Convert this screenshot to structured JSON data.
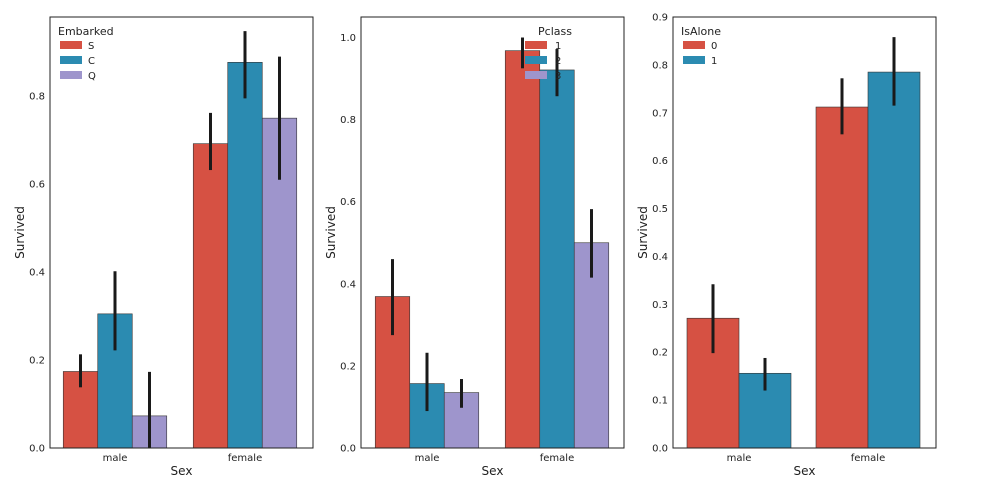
{
  "colors": {
    "red": "#d65143",
    "blue": "#2b8bb1",
    "purple": "#9e95cc",
    "frame": "#222222",
    "err": "#1a1a1a"
  },
  "chart_data": [
    {
      "type": "bar",
      "categories": [
        "male",
        "female"
      ],
      "xlabel": "Sex",
      "ylabel": "Survived",
      "ylim": [
        0,
        0.98
      ],
      "yticks": [
        "0.0",
        "0.2",
        "0.4",
        "0.6",
        "0.8"
      ],
      "yticks_values": [
        0,
        0.2,
        0.4,
        0.6,
        0.8
      ],
      "legend": {
        "title": "Embarked",
        "placement": "top-left"
      },
      "series": [
        {
          "name": "S",
          "color": "#d65143",
          "values": [
            0.174,
            0.692
          ],
          "ci": [
            [
              0.138,
              0.213
            ],
            [
              0.632,
              0.762
            ]
          ]
        },
        {
          "name": "C",
          "color": "#2b8bb1",
          "values": [
            0.305,
            0.877
          ],
          "ci": [
            [
              0.222,
              0.402
            ],
            [
              0.795,
              0.948
            ]
          ]
        },
        {
          "name": "Q",
          "color": "#9e95cc",
          "values": [
            0.073,
            0.75
          ],
          "ci": [
            [
              0.0,
              0.173
            ],
            [
              0.61,
              0.89
            ]
          ]
        }
      ]
    },
    {
      "type": "bar",
      "categories": [
        "male",
        "female"
      ],
      "xlabel": "Sex",
      "ylabel": "Survived",
      "ylim": [
        0,
        1.05
      ],
      "yticks": [
        "0.0",
        "0.2",
        "0.4",
        "0.6",
        "0.8",
        "1.0"
      ],
      "yticks_values": [
        0,
        0.2,
        0.4,
        0.6,
        0.8,
        1.0
      ],
      "legend": {
        "title": "Pclass",
        "placement": "top-right"
      },
      "series": [
        {
          "name": "1",
          "color": "#d65143",
          "values": [
            0.369,
            0.968
          ],
          "ci": [
            [
              0.275,
              0.46
            ],
            [
              0.925,
              1.0
            ]
          ]
        },
        {
          "name": "2",
          "color": "#2b8bb1",
          "values": [
            0.157,
            0.921
          ],
          "ci": [
            [
              0.09,
              0.232
            ],
            [
              0.857,
              0.972
            ]
          ]
        },
        {
          "name": "3",
          "color": "#9e95cc",
          "values": [
            0.135,
            0.5
          ],
          "ci": [
            [
              0.098,
              0.168
            ],
            [
              0.415,
              0.582
            ]
          ]
        }
      ]
    },
    {
      "type": "bar",
      "categories": [
        "male",
        "female"
      ],
      "xlabel": "Sex",
      "ylabel": "Survived",
      "ylim": [
        0,
        0.9
      ],
      "yticks": [
        "0.0",
        "0.1",
        "0.2",
        "0.3",
        "0.4",
        "0.5",
        "0.6",
        "0.7",
        "0.8",
        "0.9"
      ],
      "yticks_values": [
        0,
        0.1,
        0.2,
        0.3,
        0.4,
        0.5,
        0.6,
        0.7,
        0.8,
        0.9
      ],
      "legend": {
        "title": "IsAlone",
        "placement": "top-left"
      },
      "series": [
        {
          "name": "0",
          "color": "#d65143",
          "values": [
            0.271,
            0.712
          ],
          "ci": [
            [
              0.198,
              0.342
            ],
            [
              0.655,
              0.772
            ]
          ]
        },
        {
          "name": "1",
          "color": "#2b8bb1",
          "values": [
            0.156,
            0.785
          ],
          "ci": [
            [
              0.12,
              0.188
            ],
            [
              0.715,
              0.858
            ]
          ]
        }
      ]
    }
  ]
}
